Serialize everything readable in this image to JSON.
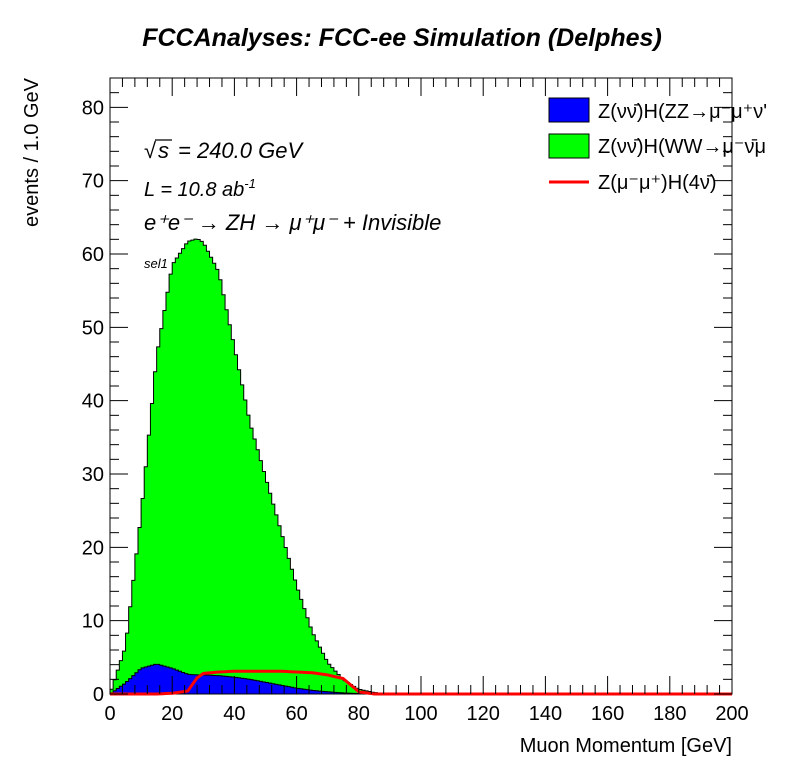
{
  "chart_data": {
    "type": "area",
    "title": "FCCAnalyses: FCC-ee Simulation (Delphes)",
    "xlabel": "Muon Momentum [GeV]",
    "ylabel": "events / 1.0 GeV",
    "xlim": [
      0,
      200
    ],
    "ylim": [
      0,
      84
    ],
    "xticks": [
      "0",
      "20",
      "40",
      "60",
      "80",
      "100",
      "120",
      "140",
      "160",
      "180",
      "200"
    ],
    "yticks": [
      "0",
      "10",
      "20",
      "30",
      "40",
      "50",
      "60",
      "70",
      "80"
    ],
    "grid": false,
    "legend_position": "top-right",
    "annotations": {
      "sqrt_s": "= 240.0 GeV",
      "lumi_prefix": "L = 10.8 ab",
      "lumi_exp": "-1",
      "process": "e⁺e⁻ → ZH → μ⁺μ⁻ + Invisible",
      "selection": "sel1"
    },
    "x": [
      0,
      5,
      10,
      15,
      20,
      25,
      28,
      30,
      35,
      40,
      45,
      50,
      55,
      60,
      65,
      70,
      75,
      80,
      85,
      90,
      100,
      200
    ],
    "series": [
      {
        "name": "Z(νν̄)H(ZZ→μ⁻μ⁺ν'",
        "color": "#0000ff",
        "values": [
          0,
          1.5,
          3.5,
          4.1,
          3.5,
          2.7,
          2.6,
          2.6,
          2.5,
          2.3,
          2.0,
          1.6,
          1.2,
          0.8,
          0.5,
          0.3,
          0.15,
          0.05,
          0,
          0,
          0,
          0
        ]
      },
      {
        "name": "Z(νν̄)H(WW→μ⁻ν̄μ",
        "color": "#00ff00",
        "values": [
          0,
          5.0,
          21,
          42,
          55,
          59,
          59.5,
          59,
          55,
          45,
          35,
          28,
          21,
          14,
          8.0,
          4.0,
          1.8,
          0.6,
          0.2,
          0,
          0,
          0
        ]
      },
      {
        "name": "Z(μ⁻μ⁺)H(4ν̄)",
        "color": "#ff0000",
        "values": [
          0,
          0,
          0,
          0,
          0.1,
          0.4,
          2.2,
          2.8,
          3.0,
          3.1,
          3.1,
          3.1,
          3.1,
          3.0,
          2.9,
          2.6,
          2.1,
          0.3,
          0,
          0,
          0,
          0
        ]
      }
    ]
  }
}
